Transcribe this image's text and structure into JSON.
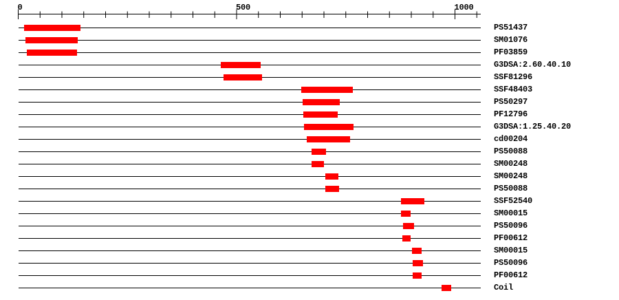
{
  "chart_data": {
    "type": "bar",
    "subtype": "horizontal-domain-range-track",
    "title": "",
    "xlabel": "",
    "ylabel": "",
    "axis": {
      "min": 0,
      "max": 1058,
      "minor_tick_interval": 50,
      "major_ticks": [
        {
          "value": 0,
          "label": "0"
        },
        {
          "value": 500,
          "label": "500"
        },
        {
          "value": 1000,
          "label": "1000"
        }
      ],
      "position": "top",
      "grid": false
    },
    "legend": null,
    "colors": {
      "bar": "#ff0000",
      "line": "#000000",
      "text": "#000000",
      "background": "#ffffff"
    },
    "rows": [
      {
        "label": "PS51437",
        "start": 13,
        "end": 143
      },
      {
        "label": "SM01076",
        "start": 17,
        "end": 136
      },
      {
        "label": "PF03859",
        "start": 20,
        "end": 135
      },
      {
        "label": "G3DSA:2.60.40.10",
        "start": 464,
        "end": 555
      },
      {
        "label": "SSF81296",
        "start": 470,
        "end": 559
      },
      {
        "label": "SSF48403",
        "start": 648,
        "end": 766
      },
      {
        "label": "PS50297",
        "start": 651,
        "end": 736
      },
      {
        "label": "PF12796",
        "start": 653,
        "end": 732
      },
      {
        "label": "G3DSA:1.25.40.20",
        "start": 654,
        "end": 768
      },
      {
        "label": "cd00204",
        "start": 660,
        "end": 760
      },
      {
        "label": "PS50088",
        "start": 671,
        "end": 704
      },
      {
        "label": "SM00248",
        "start": 671,
        "end": 700
      },
      {
        "label": "SM00248",
        "start": 703,
        "end": 733
      },
      {
        "label": "PS50088",
        "start": 703,
        "end": 735
      },
      {
        "label": "SSF52540",
        "start": 876,
        "end": 930
      },
      {
        "label": "SM00015",
        "start": 877,
        "end": 899
      },
      {
        "label": "PS50096",
        "start": 881,
        "end": 907
      },
      {
        "label": "PF00612",
        "start": 880,
        "end": 899
      },
      {
        "label": "SM00015",
        "start": 901,
        "end": 923
      },
      {
        "label": "PS50096",
        "start": 903,
        "end": 927
      },
      {
        "label": "PF00612",
        "start": 903,
        "end": 923
      },
      {
        "label": "Coil",
        "start": 969,
        "end": 991
      }
    ]
  }
}
